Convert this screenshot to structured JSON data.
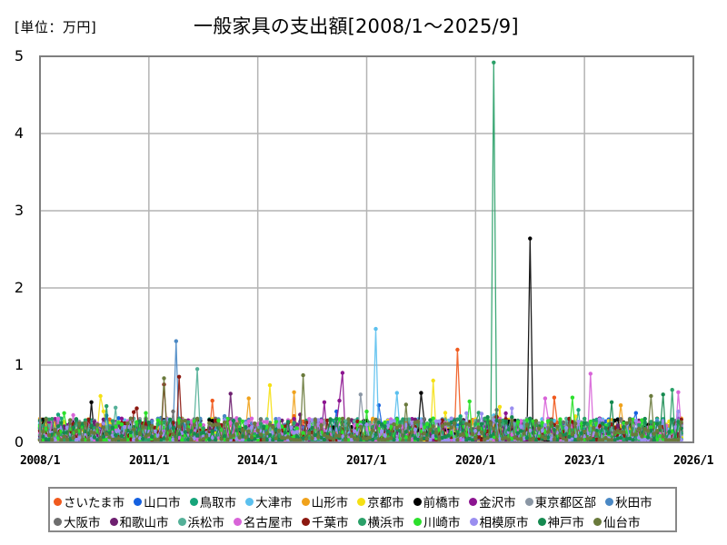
{
  "header": {
    "unit_label": "[単位：万円]",
    "title": "一般家具の支出額[2008/1～2025/9]"
  },
  "chart_data": {
    "type": "line",
    "title": "一般家具の支出額[2008/1～2025/9]",
    "unit": "万円",
    "xlabel": "",
    "ylabel": "",
    "x_start": "2008/1",
    "x_end": "2025/9",
    "frequency": "monthly",
    "xlim": [
      "2008/1",
      "2026/1"
    ],
    "ylim": [
      0,
      5
    ],
    "yticks": [
      0,
      1,
      2,
      3,
      4,
      5
    ],
    "xticks": [
      "2008/1",
      "2011/1",
      "2014/1",
      "2017/1",
      "2020/1",
      "2023/1",
      "2026/1"
    ],
    "grid": true,
    "markers": true,
    "legend_position": "bottom",
    "baseline_note": "Most monthly values for all series lie between 0 and about 0.35; notable peaks are listed per series.",
    "series": [
      {
        "name": "さいたま市",
        "color": "#f05a1e",
        "peaks": [
          {
            "x": "2019/7",
            "y": 1.2
          },
          {
            "x": "2012/10",
            "y": 0.54
          },
          {
            "x": "2022/3",
            "y": 0.58
          }
        ]
      },
      {
        "name": "山口市",
        "color": "#1460e0",
        "peaks": [
          {
            "x": "2017/5",
            "y": 0.48
          },
          {
            "x": "2016/3",
            "y": 0.4
          },
          {
            "x": "2024/6",
            "y": 0.38
          }
        ]
      },
      {
        "name": "鳥取市",
        "color": "#16a47a",
        "peaks": [
          {
            "x": "2008/7",
            "y": 0.36
          },
          {
            "x": "2022/11",
            "y": 0.42
          }
        ]
      },
      {
        "name": "大津市",
        "color": "#5bc0ee",
        "peaks": [
          {
            "x": "2017/4",
            "y": 1.47
          },
          {
            "x": "2017/11",
            "y": 0.64
          },
          {
            "x": "2020/7",
            "y": 0.35
          }
        ]
      },
      {
        "name": "山形市",
        "color": "#f0a21c",
        "peaks": [
          {
            "x": "2015/1",
            "y": 0.65
          },
          {
            "x": "2013/10",
            "y": 0.57
          },
          {
            "x": "2024/1",
            "y": 0.48
          }
        ]
      },
      {
        "name": "京都市",
        "color": "#f5e014",
        "peaks": [
          {
            "x": "2018/11",
            "y": 0.8
          },
          {
            "x": "2014/5",
            "y": 0.74
          },
          {
            "x": "2009/9",
            "y": 0.6
          },
          {
            "x": "2020/9",
            "y": 0.46
          }
        ]
      },
      {
        "name": "前橋市",
        "color": "#000000",
        "peaks": [
          {
            "x": "2021/7",
            "y": 2.64
          },
          {
            "x": "2018/7",
            "y": 0.64
          },
          {
            "x": "2009/6",
            "y": 0.52
          }
        ]
      },
      {
        "name": "金沢市",
        "color": "#8c1490",
        "peaks": [
          {
            "x": "2016/5",
            "y": 0.9
          },
          {
            "x": "2015/11",
            "y": 0.52
          },
          {
            "x": "2016/4",
            "y": 0.54
          }
        ]
      },
      {
        "name": "東京都区部",
        "color": "#8a96a4",
        "peaks": [
          {
            "x": "2016/11",
            "y": 0.62
          },
          {
            "x": "2020/7",
            "y": 0.32
          }
        ]
      },
      {
        "name": "秋田市",
        "color": "#4a88c4",
        "peaks": [
          {
            "x": "2011/10",
            "y": 1.31
          },
          {
            "x": "2013/2",
            "y": 0.34
          }
        ]
      },
      {
        "name": "大阪市",
        "color": "#6e6e6e",
        "peaks": [
          {
            "x": "2011/9",
            "y": 0.4
          },
          {
            "x": "2020/8",
            "y": 0.42
          }
        ]
      },
      {
        "name": "和歌山市",
        "color": "#6e2070",
        "peaks": [
          {
            "x": "2013/4",
            "y": 0.63
          },
          {
            "x": "2015/3",
            "y": 0.36
          }
        ]
      },
      {
        "name": "浜松市",
        "color": "#54b098",
        "peaks": [
          {
            "x": "2012/5",
            "y": 0.95
          },
          {
            "x": "2010/2",
            "y": 0.45
          }
        ]
      },
      {
        "name": "名古屋市",
        "color": "#d864d8",
        "peaks": [
          {
            "x": "2023/3",
            "y": 0.89
          },
          {
            "x": "2025/8",
            "y": 0.65
          },
          {
            "x": "2021/12",
            "y": 0.57
          }
        ]
      },
      {
        "name": "千葉市",
        "color": "#8c1810",
        "peaks": [
          {
            "x": "2011/11",
            "y": 0.85
          },
          {
            "x": "2011/6",
            "y": 0.75
          },
          {
            "x": "2010/9",
            "y": 0.44
          }
        ]
      },
      {
        "name": "横浜市",
        "color": "#2aa068",
        "peaks": [
          {
            "x": "2020/7",
            "y": 4.92
          },
          {
            "x": "2025/6",
            "y": 0.68
          },
          {
            "x": "2009/11",
            "y": 0.47
          }
        ]
      },
      {
        "name": "川崎市",
        "color": "#2ce02c",
        "peaks": [
          {
            "x": "2022/9",
            "y": 0.58
          },
          {
            "x": "2019/11",
            "y": 0.53
          },
          {
            "x": "2010/12",
            "y": 0.38
          }
        ]
      },
      {
        "name": "相模原市",
        "color": "#9a8ef0",
        "peaks": [
          {
            "x": "2021/1",
            "y": 0.44
          },
          {
            "x": "2025/8",
            "y": 0.4
          }
        ]
      },
      {
        "name": "神戸市",
        "color": "#168a50",
        "peaks": [
          {
            "x": "2025/3",
            "y": 0.62
          },
          {
            "x": "2023/10",
            "y": 0.52
          }
        ]
      },
      {
        "name": "仙台市",
        "color": "#6a7a3c",
        "peaks": [
          {
            "x": "2015/4",
            "y": 0.87
          },
          {
            "x": "2011/6",
            "y": 0.83
          },
          {
            "x": "2018/2",
            "y": 0.49
          },
          {
            "x": "2024/11",
            "y": 0.6
          }
        ]
      }
    ]
  },
  "axes": {
    "y_labels": [
      "0",
      "1",
      "2",
      "3",
      "4",
      "5"
    ],
    "x_labels": [
      "2008/1",
      "2011/1",
      "2014/1",
      "2017/1",
      "2020/1",
      "2023/1",
      "2026/1"
    ]
  },
  "legend": {
    "row1": [
      "さいたま市",
      "山口市",
      "鳥取市",
      "大津市",
      "山形市",
      "京都市",
      "前橋市",
      "金沢市",
      "東京都区部",
      "秋田市"
    ],
    "row2": [
      "大阪市",
      "和歌山市",
      "浜松市",
      "名古屋市",
      "千葉市",
      "横浜市",
      "川崎市",
      "相模原市",
      "神戸市",
      "仙台市"
    ]
  }
}
